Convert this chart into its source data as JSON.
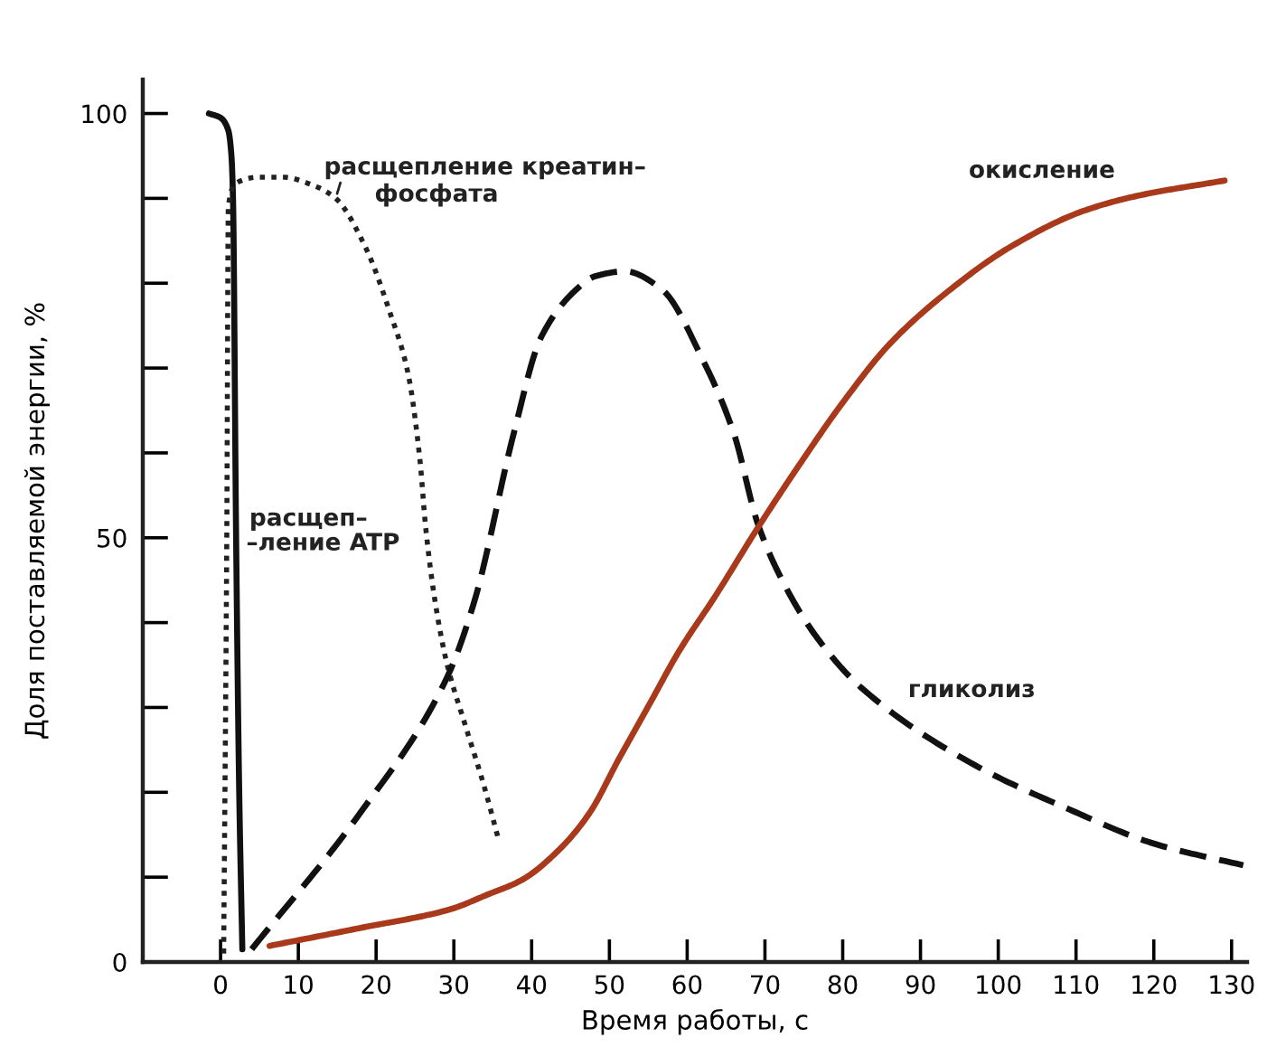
{
  "chart_data": {
    "type": "line",
    "xlabel": "Время работы, с",
    "ylabel": "Доля поставляемой энергии, %",
    "xlim": [
      -10,
      132
    ],
    "ylim": [
      0,
      104
    ],
    "xticks": [
      0,
      10,
      20,
      30,
      40,
      50,
      60,
      70,
      80,
      90,
      100,
      110,
      120,
      130
    ],
    "yticks": [
      0,
      {
        "value": 10,
        "label": null
      },
      {
        "value": 20,
        "label": null
      },
      {
        "value": 30,
        "label": null
      },
      {
        "value": 40,
        "label": null
      },
      50,
      {
        "value": 60,
        "label": null
      },
      {
        "value": 70,
        "label": null
      },
      {
        "value": 80,
        "label": null
      },
      {
        "value": 90,
        "label": null
      },
      100
    ],
    "grid": false,
    "legend": false,
    "marker": "none",
    "series": [
      {
        "name": "расщеп–\n–ление ATP",
        "color": "#111111",
        "line_style": "solid",
        "x": [
          -1.5,
          0,
          1,
          1.4,
          1.6,
          2.0,
          2.4,
          2.8
        ],
        "values": [
          100,
          99.5,
          98,
          95,
          90,
          50,
          20,
          1.5
        ]
      },
      {
        "name": "расщепление креатин–\nфосфата",
        "color": "#222222",
        "line_style": "dotted",
        "x": [
          0.4,
          0.8,
          1.0,
          2.0,
          5,
          8,
          12,
          14.8,
          18.6,
          21.8,
          24.1,
          25.6,
          26.4,
          27.6,
          29.1,
          31.4,
          33.8,
          35.7
        ],
        "values": [
          1,
          50,
          89,
          91.8,
          92.5,
          92.5,
          91.5,
          90,
          84.3,
          76.5,
          69.4,
          59.5,
          51,
          42.4,
          35.2,
          28.1,
          21,
          14.6
        ]
      },
      {
        "name": "гликолиз",
        "color": "#111111",
        "line_style": "dashed",
        "x": [
          4,
          17.9,
          29.1,
          32.6,
          37.7,
          41.2,
          45.8,
          48.1,
          52,
          56.7,
          62.1,
          66,
          69.1,
          72.9,
          76.8,
          82.3,
          97,
          108.6,
          120.2,
          131.5
        ],
        "values": [
          1.5,
          17.5,
          33.5,
          42.4,
          62.3,
          73.6,
          79.3,
          80.8,
          81.4,
          79.3,
          70.8,
          62.3,
          51.6,
          43.8,
          38.1,
          32.4,
          23.2,
          18.2,
          13.9,
          11.4
        ]
      },
      {
        "name": "окисление",
        "color": "#a8391a",
        "line_style": "solid",
        "x": [
          6.3,
          17.9,
          29.5,
          34.2,
          38.8,
          43.5,
          47.4,
          51.2,
          55.1,
          59,
          63.6,
          69.1,
          74.5,
          79.9,
          86.1,
          93.9,
          101.6,
          110.9,
          117.9,
          129.1
        ],
        "values": [
          1.9,
          4,
          6.2,
          7.9,
          9.7,
          13.2,
          17.5,
          23.9,
          30.3,
          36.7,
          43.1,
          51.2,
          58.7,
          65.8,
          72.9,
          79.3,
          84.3,
          88.5,
          90.3,
          92.1
        ]
      }
    ]
  }
}
